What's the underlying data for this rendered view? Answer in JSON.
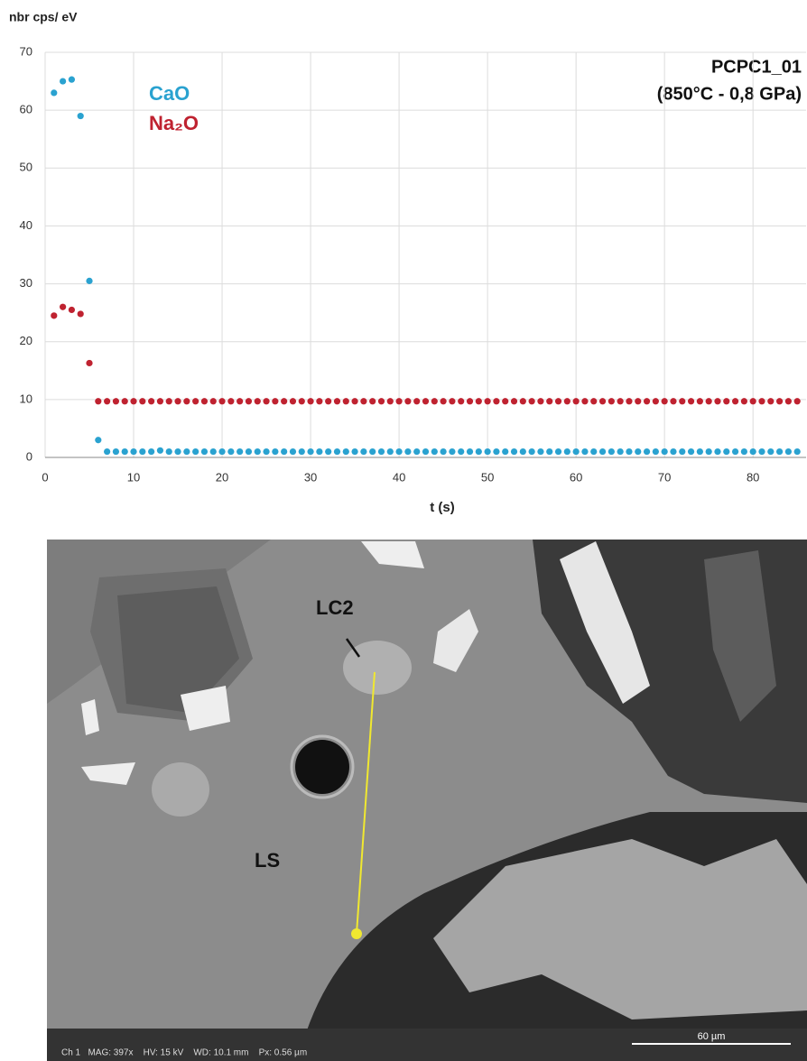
{
  "chart_data": {
    "type": "scatter",
    "y_label": "nbr cps/ eV",
    "x_label": "t (s)",
    "annotation": [
      "PCPC1_01",
      "(850°C - 0,8 GPa)"
    ],
    "x": [
      1,
      2,
      3,
      4,
      5,
      6,
      7,
      8,
      9,
      10,
      11,
      12,
      13,
      14,
      15,
      16,
      17,
      18,
      19,
      20,
      21,
      22,
      23,
      24,
      25,
      26,
      27,
      28,
      29,
      30,
      31,
      32,
      33,
      34,
      35,
      36,
      37,
      38,
      39,
      40,
      41,
      42,
      43,
      44,
      45,
      46,
      47,
      48,
      49,
      50,
      51,
      52,
      53,
      54,
      55,
      56,
      57,
      58,
      59,
      60,
      61,
      62,
      63,
      64,
      65,
      66,
      67,
      68,
      69,
      70,
      71,
      72,
      73,
      74,
      75,
      76,
      77,
      78,
      79,
      80,
      81,
      82,
      83,
      84,
      85
    ],
    "series": [
      {
        "name": "CaO",
        "color": "#2aa2d0",
        "values": [
          63,
          65,
          65.3,
          59,
          30.5,
          3,
          1,
          1,
          1,
          1,
          1,
          1,
          1.2,
          1,
          1,
          1,
          1,
          1,
          1,
          1,
          1,
          1,
          1,
          1,
          1,
          1,
          1,
          1,
          1,
          1,
          1,
          1,
          1,
          1,
          1,
          1,
          1,
          1,
          1,
          1,
          1,
          1,
          1,
          1,
          1,
          1,
          1,
          1,
          1,
          1,
          1,
          1,
          1,
          1,
          1,
          1,
          1,
          1,
          1,
          1,
          1,
          1,
          1,
          1,
          1,
          1,
          1,
          1,
          1,
          1,
          1,
          1,
          1,
          1,
          1,
          1,
          1,
          1,
          1,
          1,
          1,
          1,
          1,
          1,
          1
        ]
      },
      {
        "name": "Na₂O",
        "color": "#bf2230",
        "values": [
          24.5,
          26,
          25.5,
          24.8,
          16.3,
          9.7,
          9.7,
          9.7,
          9.7,
          9.7,
          9.7,
          9.7,
          9.7,
          9.7,
          9.7,
          9.7,
          9.7,
          9.7,
          9.7,
          9.7,
          9.7,
          9.7,
          9.7,
          9.7,
          9.7,
          9.7,
          9.7,
          9.7,
          9.7,
          9.7,
          9.7,
          9.7,
          9.7,
          9.7,
          9.7,
          9.7,
          9.7,
          9.7,
          9.7,
          9.7,
          9.7,
          9.7,
          9.7,
          9.7,
          9.7,
          9.7,
          9.7,
          9.7,
          9.7,
          9.7,
          9.7,
          9.7,
          9.7,
          9.7,
          9.7,
          9.7,
          9.7,
          9.7,
          9.7,
          9.7,
          9.7,
          9.7,
          9.7,
          9.7,
          9.7,
          9.7,
          9.7,
          9.7,
          9.7,
          9.7,
          9.7,
          9.7,
          9.7,
          9.7,
          9.7,
          9.7,
          9.7,
          9.7,
          9.7,
          9.7,
          9.7,
          9.7,
          9.7,
          9.7,
          9.7
        ]
      }
    ],
    "xlim": [
      0,
      86
    ],
    "ylim": [
      0,
      70
    ],
    "xticks": [
      0,
      10,
      20,
      30,
      40,
      50,
      60,
      70,
      80
    ],
    "yticks": [
      0,
      10,
      20,
      30,
      40,
      50,
      60,
      70
    ],
    "grid": true
  },
  "micrograph": {
    "labels": [
      "LC2",
      "LS"
    ],
    "status_bar": "Ch 1   MAG: 397x    HV: 15 kV    WD: 10.1 mm    Px: 0.56 µm",
    "scale_bar": "60 µm"
  }
}
